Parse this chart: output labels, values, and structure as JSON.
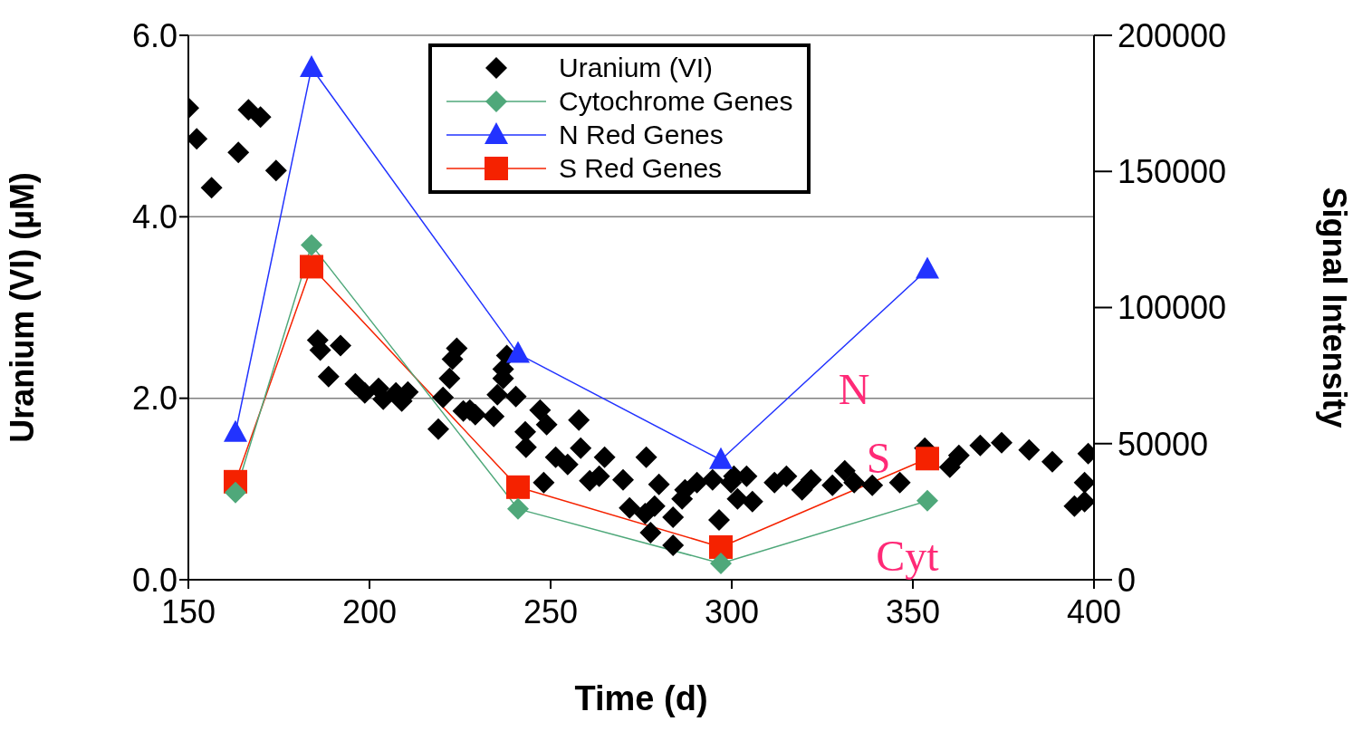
{
  "chart_data": {
    "type": "scatter",
    "xlabel": "Time (d)",
    "ylabel": "Uranium (VI) (µM)",
    "y2label": "Signal Intensity",
    "xlim": [
      150,
      400
    ],
    "xticks": [
      150,
      200,
      250,
      300,
      350,
      400
    ],
    "ylim": [
      0,
      6
    ],
    "yticks": [
      {
        "value": 0,
        "label": "0.0"
      },
      {
        "value": 2,
        "label": "2.0"
      },
      {
        "value": 4,
        "label": "4.0"
      },
      {
        "value": 6,
        "label": "6.0"
      }
    ],
    "y2lim": [
      0,
      200000
    ],
    "y2ticks": [
      0,
      50000,
      100000,
      150000,
      200000
    ],
    "grid": "y",
    "legend": "top",
    "series": [
      {
        "name": "Uranium (VI)",
        "type": "scatter",
        "marker": "diamond",
        "color": "#000000",
        "x": [
          150,
          152.3,
          156.4,
          163.8,
          166.6,
          169.9,
          174.2,
          185.7,
          186.4,
          192,
          188.7,
          196.1,
          198.7,
          202.5,
          203.8,
          207.3,
          210.6,
          208.9,
          224.1,
          222.9,
          222.1,
          220.3,
          227.7,
          219,
          225.9,
          229.2,
          234.3,
          237.9,
          236.9,
          236.9,
          235.3,
          240.4,
          247.1,
          248.9,
          243,
          243.2,
          248.1,
          257.8,
          251.4,
          254.7,
          258.3,
          264.9,
          260.8,
          263.4,
          270,
          276.4,
          271.8,
          276.1,
          278.7,
          277.6,
          279.9,
          283.8,
          283.8,
          286.3,
          287.1,
          290.4,
          296.5,
          294.7,
          300.6,
          301.6,
          299.8,
          305.7,
          304.1,
          311.8,
          315.1,
          319.4,
          321.9,
          327.8,
          331.2,
          333.8,
          338.8,
          346.4,
          353.3,
          360.2,
          362.7,
          368.6,
          374.5,
          382.1,
          388.5,
          398.4,
          397.4,
          397.4,
          394.6
        ],
        "values": [
          5.2,
          4.86,
          4.32,
          4.71,
          5.18,
          5.1,
          4.51,
          2.64,
          2.53,
          2.58,
          2.24,
          2.16,
          2.06,
          2.11,
          1.99,
          2.06,
          2.07,
          1.97,
          2.55,
          2.43,
          2.22,
          2.01,
          1.87,
          1.66,
          1.86,
          1.82,
          1.8,
          2.47,
          2.32,
          2.22,
          2.04,
          2.02,
          1.87,
          1.71,
          1.63,
          1.46,
          1.07,
          1.76,
          1.35,
          1.27,
          1.45,
          1.35,
          1.09,
          1.14,
          1.1,
          1.35,
          0.79,
          0.73,
          0.81,
          0.52,
          1.05,
          0.38,
          0.69,
          0.89,
          0.99,
          1.07,
          0.66,
          1.1,
          1.14,
          0.89,
          1.07,
          0.86,
          1.14,
          1.07,
          1.14,
          0.99,
          1.1,
          1.04,
          1.2,
          1.07,
          1.04,
          1.07,
          1.45,
          1.24,
          1.37,
          1.48,
          1.51,
          1.43,
          1.3,
          1.39,
          1.07,
          0.86,
          0.81
        ]
      },
      {
        "name": "Cytochrome Genes",
        "type": "line",
        "marker": "diamond",
        "axis": "y2",
        "color": "#4fa87a",
        "x": [
          163,
          184,
          241,
          297,
          354
        ],
        "values": [
          32000,
          123000,
          26000,
          6000,
          29000
        ]
      },
      {
        "name": "N Red Genes",
        "type": "line",
        "marker": "triangle",
        "axis": "y2",
        "color": "#2233ff",
        "x": [
          163,
          184,
          241,
          297,
          354
        ],
        "values": [
          54000,
          188000,
          83000,
          44000,
          114000
        ]
      },
      {
        "name": "S Red Genes",
        "type": "line",
        "marker": "square",
        "axis": "y2",
        "color": "#f52200",
        "x": [
          163,
          184,
          241,
          297,
          354
        ],
        "values": [
          36000,
          115000,
          34000,
          12000,
          44500
        ]
      }
    ],
    "annotations": [
      "N",
      "S",
      "Cyt"
    ]
  }
}
